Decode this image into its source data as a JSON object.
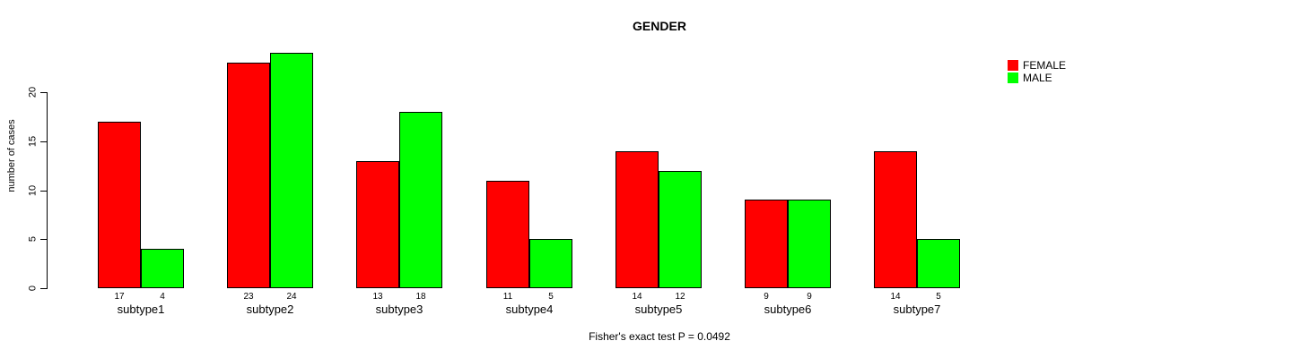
{
  "chart_data": {
    "type": "bar",
    "grouped": true,
    "title": "GENDER",
    "xlabel": "",
    "ylabel": "number of cases",
    "caption": "Fisher's exact test P = 0.0492",
    "categories": [
      "subtype1",
      "subtype2",
      "subtype3",
      "subtype4",
      "subtype5",
      "subtype6",
      "subtype7"
    ],
    "series": [
      {
        "name": "FEMALE",
        "color": "#ff0000",
        "values": [
          17,
          23,
          13,
          11,
          14,
          9,
          14
        ]
      },
      {
        "name": "MALE",
        "color": "#00ff00",
        "values": [
          4,
          24,
          18,
          5,
          12,
          9,
          5
        ]
      }
    ],
    "bar_value_labels": [
      [
        "17",
        "4"
      ],
      [
        "23",
        "24"
      ],
      [
        "13",
        "18"
      ],
      [
        "11",
        "5"
      ],
      [
        "14",
        "12"
      ],
      [
        "9",
        "9"
      ],
      [
        "14",
        "5"
      ]
    ],
    "yticks": [
      0,
      5,
      10,
      15,
      20
    ],
    "ylim": [
      0,
      24
    ],
    "grid": false,
    "legend_position": "top-right",
    "bar_outline_color": "#000000",
    "background_color": "#ffffff"
  }
}
